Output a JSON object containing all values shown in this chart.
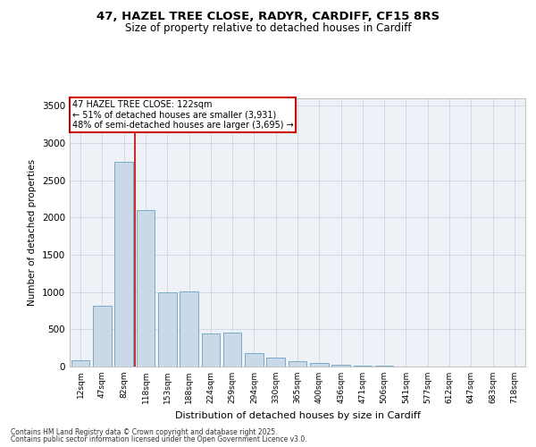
{
  "title_line1": "47, HAZEL TREE CLOSE, RADYR, CARDIFF, CF15 8RS",
  "title_line2": "Size of property relative to detached houses in Cardiff",
  "xlabel": "Distribution of detached houses by size in Cardiff",
  "ylabel": "Number of detached properties",
  "categories": [
    "12sqm",
    "47sqm",
    "82sqm",
    "118sqm",
    "153sqm",
    "188sqm",
    "224sqm",
    "259sqm",
    "294sqm",
    "330sqm",
    "365sqm",
    "400sqm",
    "436sqm",
    "471sqm",
    "506sqm",
    "541sqm",
    "577sqm",
    "612sqm",
    "647sqm",
    "683sqm",
    "718sqm"
  ],
  "values": [
    80,
    820,
    2750,
    2100,
    1000,
    1010,
    450,
    460,
    175,
    115,
    70,
    50,
    28,
    18,
    8,
    5,
    4,
    2,
    1,
    1,
    0
  ],
  "bar_color": "#c9d9e8",
  "bar_edge_color": "#7aaac8",
  "vline_x": 2.5,
  "vline_color": "#cc0000",
  "annotation_text": "47 HAZEL TREE CLOSE: 122sqm\n← 51% of detached houses are smaller (3,931)\n48% of semi-detached houses are larger (3,695) →",
  "annotation_box_color": "#ffffff",
  "annotation_box_edge_color": "#cc0000",
  "ylim": [
    0,
    3600
  ],
  "yticks": [
    0,
    500,
    1000,
    1500,
    2000,
    2500,
    3000,
    3500
  ],
  "background_color": "#eef2f7",
  "grid_color": "#c5d0e0",
  "footer_line1": "Contains HM Land Registry data © Crown copyright and database right 2025.",
  "footer_line2": "Contains public sector information licensed under the Open Government Licence v3.0."
}
